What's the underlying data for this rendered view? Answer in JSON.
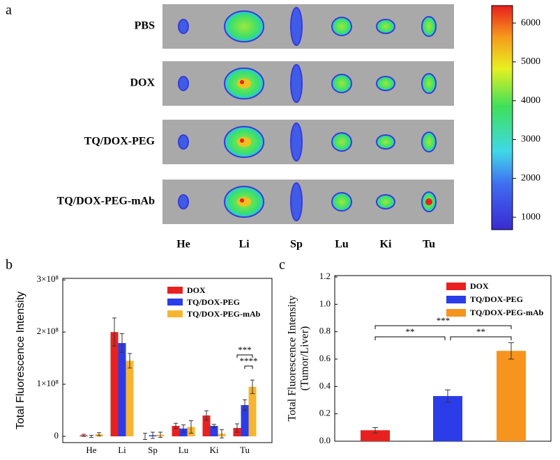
{
  "chart_data": [
    {
      "type": "image-panel",
      "label": "a",
      "rows": [
        "PBS",
        "DOX",
        "TQ/DOX-PEG",
        "TQ/DOX-PEG-mAb"
      ],
      "columns": [
        "He",
        "Li",
        "Sp",
        "Lu",
        "Ki",
        "Tu"
      ],
      "clim": [
        680,
        6450
      ],
      "cticks": [
        1000,
        2000,
        3000,
        4000,
        5000,
        6000
      ]
    },
    {
      "type": "bar",
      "label": "b",
      "ylabel": "Total Fluorescence Intensity",
      "categories": [
        "He",
        "Li",
        "Sp",
        "Lu",
        "Ki",
        "Tu"
      ],
      "series": [
        {
          "name": "DOX",
          "color": "#e8211f",
          "values": [
            2000000,
            200000000,
            0,
            20000000,
            40000000,
            16000000
          ],
          "errors": [
            2000000,
            27000000,
            6000000,
            5000000,
            9000000,
            8000000
          ]
        },
        {
          "name": "TQ/DOX-PEG",
          "color": "#2b3de8",
          "values": [
            0,
            179000000,
            2000000,
            15000000,
            20000000,
            60000000
          ],
          "errors": [
            2000000,
            18000000,
            6000000,
            7000000,
            3000000,
            10000000
          ]
        },
        {
          "name": "TQ/DOX-PEG-mAb",
          "color": "#f6b531",
          "values": [
            4000000,
            145000000,
            3000000,
            18000000,
            5000000,
            95000000
          ],
          "errors": [
            3000000,
            14000000,
            5000000,
            12000000,
            8000000,
            13000000
          ]
        }
      ],
      "ylim": [
        -12000000,
        303000000
      ],
      "yticks": [
        0,
        {
          "value": 100000000,
          "label": "1×10⁸"
        },
        {
          "value": 200000000,
          "label": "2×10⁸"
        },
        {
          "value": 300000000,
          "label": "3×10⁸"
        }
      ],
      "annotations": [
        "***",
        "****"
      ]
    },
    {
      "type": "bar-single",
      "label": "c",
      "ylabel": [
        "Total Fluorescence Intensity",
        "(Tumor/Liver)"
      ],
      "categories": [
        null,
        null,
        null
      ],
      "values": [
        0.08,
        0.33,
        0.66
      ],
      "errors": [
        0.02,
        0.045,
        0.06
      ],
      "colors": [
        "#e8211f",
        "#2b3de8",
        "#f7941d"
      ],
      "legend": [
        "DOX",
        "TQ/DOX-PEG",
        "TQ/DOX-PEG-mAb"
      ],
      "ylim": [
        0,
        1.21
      ],
      "yticks": [
        {
          "value": 0,
          "label": "0.0"
        },
        0.2,
        0.4,
        0.6,
        0.8,
        {
          "value": 1,
          "label": "1.0"
        },
        1.2
      ],
      "annotations": [
        "**",
        "**",
        "***"
      ]
    }
  ]
}
